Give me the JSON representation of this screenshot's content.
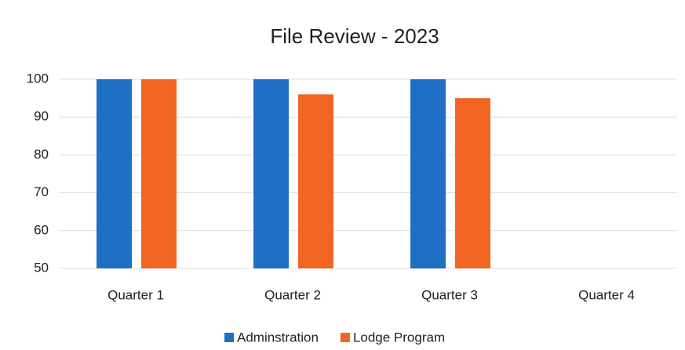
{
  "chart_data": {
    "type": "bar",
    "title": "File Review - 2023",
    "categories": [
      "Quarter 1",
      "Quarter 2",
      "Quarter 3",
      "Quarter 4"
    ],
    "series": [
      {
        "name": "Adminstration",
        "color": "#1f6fc5",
        "values": [
          100,
          100,
          100,
          null
        ]
      },
      {
        "name": "Lodge Program",
        "color": "#f26522",
        "values": [
          100,
          96,
          95,
          null
        ]
      }
    ],
    "ylim": [
      50,
      100
    ],
    "yticks": [
      50,
      60,
      70,
      80,
      90,
      100
    ],
    "grid": true,
    "legend": "bottom"
  }
}
